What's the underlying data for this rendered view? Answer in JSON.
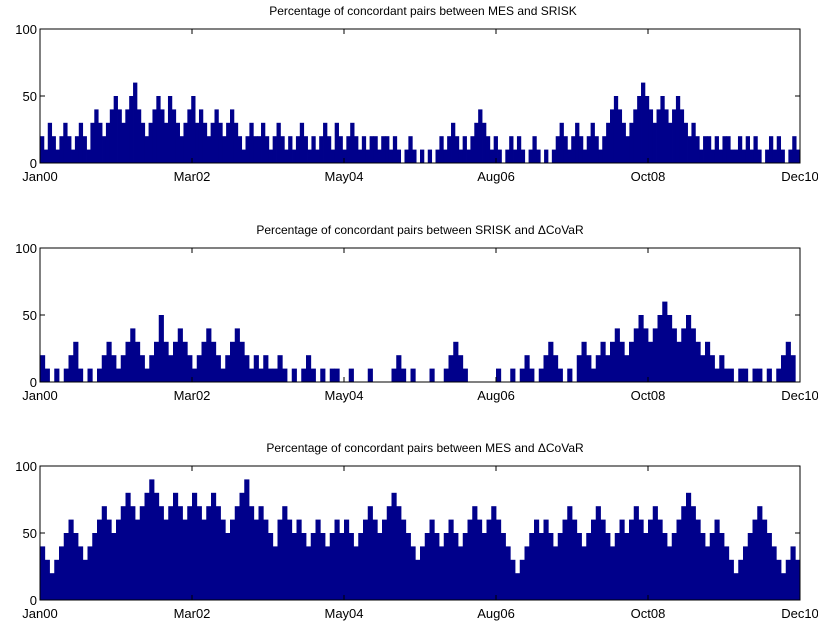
{
  "colors": {
    "series": "#00008B",
    "axis": "#000000",
    "background": "#ffffff"
  },
  "chart_data": [
    {
      "type": "bar",
      "title": "Percentage of concordant pairs between MES and SRISK",
      "xlabel": "",
      "ylabel": "",
      "ylim": [
        0,
        100
      ],
      "yticks": [
        0,
        50,
        100
      ],
      "xticks": [
        "Jan00",
        "Mar02",
        "May04",
        "Aug06",
        "Oct08",
        "Dec10"
      ],
      "x_range": [
        "Jan00",
        "Dec10"
      ],
      "sampling": "daily, ~2870 observations",
      "grid": false,
      "series": [
        {
          "values": [
            20,
            10,
            30,
            20,
            10,
            20,
            30,
            20,
            10,
            20,
            30,
            20,
            10,
            30,
            40,
            30,
            20,
            30,
            40,
            50,
            40,
            30,
            40,
            50,
            60,
            40,
            30,
            20,
            30,
            40,
            50,
            40,
            30,
            50,
            40,
            30,
            20,
            30,
            40,
            50,
            30,
            40,
            30,
            20,
            30,
            40,
            30,
            20,
            30,
            40,
            30,
            20,
            10,
            20,
            30,
            20,
            20,
            30,
            20,
            10,
            20,
            30,
            20,
            10,
            20,
            10,
            20,
            30,
            20,
            10,
            20,
            10,
            20,
            30,
            20,
            10,
            30,
            20,
            10,
            20,
            30,
            20,
            10,
            20,
            10,
            20,
            20,
            10,
            20,
            20,
            10,
            20,
            10,
            0,
            10,
            20,
            10,
            0,
            10,
            0,
            10,
            0,
            10,
            20,
            10,
            20,
            30,
            20,
            10,
            20,
            10,
            20,
            30,
            40,
            30,
            20,
            10,
            20,
            10,
            0,
            10,
            20,
            10,
            20,
            10,
            0,
            10,
            20,
            10,
            0,
            10,
            0,
            10,
            20,
            30,
            20,
            10,
            20,
            30,
            20,
            10,
            20,
            30,
            20,
            10,
            20,
            30,
            40,
            50,
            40,
            30,
            20,
            30,
            40,
            50,
            60,
            50,
            40,
            30,
            40,
            50,
            40,
            30,
            40,
            50,
            40,
            30,
            20,
            30,
            20,
            10,
            20,
            20,
            10,
            20,
            10,
            20,
            20,
            10,
            10,
            20,
            10,
            20,
            10,
            20,
            10,
            0,
            10,
            20,
            10,
            20,
            10,
            0,
            10,
            20,
            10
          ]
        }
      ]
    },
    {
      "type": "bar",
      "title": "Percentage of concordant pairs between SRISK and ΔCoVaR",
      "xlabel": "",
      "ylabel": "",
      "ylim": [
        0,
        100
      ],
      "yticks": [
        0,
        50,
        100
      ],
      "xticks": [
        "Jan00",
        "Mar02",
        "May04",
        "Aug06",
        "Oct08",
        "Dec10"
      ],
      "x_range": [
        "Jan00",
        "Dec10"
      ],
      "sampling": "daily, ~2870 observations",
      "grid": false,
      "series": [
        {
          "values": [
            20,
            10,
            0,
            10,
            0,
            10,
            20,
            30,
            10,
            0,
            10,
            0,
            10,
            20,
            30,
            20,
            10,
            20,
            30,
            40,
            30,
            20,
            10,
            20,
            30,
            50,
            30,
            20,
            30,
            40,
            30,
            20,
            10,
            20,
            30,
            40,
            30,
            20,
            10,
            20,
            30,
            40,
            30,
            20,
            10,
            20,
            10,
            20,
            10,
            10,
            20,
            10,
            0,
            10,
            0,
            10,
            20,
            10,
            0,
            10,
            0,
            10,
            10,
            0,
            0,
            10,
            0,
            0,
            0,
            10,
            0,
            0,
            0,
            0,
            10,
            20,
            10,
            0,
            10,
            0,
            0,
            0,
            10,
            0,
            0,
            10,
            20,
            30,
            20,
            10,
            0,
            0,
            0,
            0,
            0,
            0,
            10,
            0,
            0,
            10,
            0,
            10,
            20,
            10,
            0,
            10,
            20,
            30,
            20,
            10,
            0,
            10,
            0,
            20,
            30,
            20,
            10,
            20,
            30,
            20,
            30,
            40,
            30,
            20,
            30,
            40,
            50,
            40,
            30,
            40,
            50,
            60,
            50,
            40,
            30,
            40,
            50,
            40,
            30,
            20,
            30,
            20,
            10,
            20,
            10,
            10,
            0,
            10,
            10,
            0,
            10,
            10,
            0,
            10,
            0,
            10,
            20,
            30,
            20,
            0
          ]
        }
      ]
    },
    {
      "type": "bar",
      "title": "Percentage of concordant pairs between MES and ΔCoVaR",
      "xlabel": "",
      "ylabel": "",
      "ylim": [
        0,
        100
      ],
      "yticks": [
        0,
        50,
        100
      ],
      "xticks": [
        "Jan00",
        "Mar02",
        "May04",
        "Aug06",
        "Oct08",
        "Dec10"
      ],
      "x_range": [
        "Jan00",
        "Dec10"
      ],
      "sampling": "daily, ~2870 observations",
      "grid": false,
      "series": [
        {
          "values": [
            40,
            30,
            20,
            30,
            40,
            50,
            60,
            50,
            40,
            30,
            40,
            50,
            60,
            70,
            60,
            50,
            60,
            70,
            80,
            70,
            60,
            70,
            80,
            90,
            80,
            70,
            60,
            70,
            80,
            70,
            60,
            70,
            80,
            70,
            60,
            70,
            80,
            70,
            60,
            50,
            60,
            70,
            80,
            90,
            70,
            60,
            70,
            60,
            50,
            40,
            60,
            70,
            60,
            50,
            60,
            50,
            40,
            50,
            60,
            50,
            40,
            50,
            60,
            50,
            60,
            50,
            40,
            50,
            60,
            70,
            60,
            50,
            60,
            70,
            80,
            70,
            60,
            50,
            40,
            30,
            40,
            50,
            60,
            50,
            40,
            50,
            60,
            50,
            40,
            50,
            60,
            70,
            60,
            50,
            60,
            70,
            60,
            50,
            40,
            30,
            20,
            30,
            40,
            50,
            60,
            50,
            60,
            50,
            40,
            50,
            60,
            70,
            60,
            50,
            40,
            50,
            60,
            70,
            60,
            50,
            40,
            50,
            60,
            50,
            60,
            70,
            60,
            50,
            60,
            70,
            60,
            50,
            40,
            50,
            60,
            70,
            80,
            70,
            60,
            50,
            40,
            50,
            60,
            50,
            40,
            30,
            20,
            30,
            40,
            50,
            60,
            70,
            60,
            50,
            40,
            30,
            20,
            30,
            40,
            30
          ]
        }
      ]
    }
  ]
}
